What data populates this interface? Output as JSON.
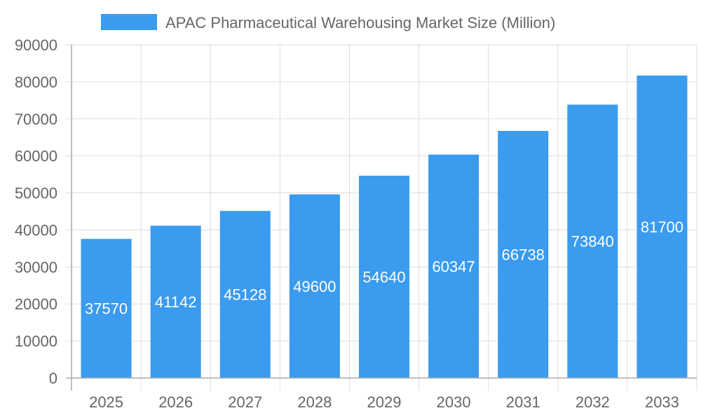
{
  "chart_data": {
    "type": "bar",
    "title": "",
    "xlabel": "",
    "ylabel": "",
    "categories": [
      "2025",
      "2026",
      "2027",
      "2028",
      "2029",
      "2030",
      "2031",
      "2032",
      "2033"
    ],
    "series": [
      {
        "name": "APAC Pharmaceutical Warehousing Market Size (Million)",
        "values": [
          37570,
          41142,
          45128,
          49600,
          54640,
          60347,
          66738,
          73840,
          81700
        ]
      }
    ],
    "ylim": [
      0,
      90000
    ],
    "yticks": [
      0,
      10000,
      20000,
      30000,
      40000,
      50000,
      60000,
      70000,
      80000,
      90000
    ],
    "grid": true,
    "legend": "top",
    "data_labels": true,
    "colors": {
      "bar": "#3a9bef",
      "grid": "#dddddd",
      "text": "#666666",
      "label": "#ffffff"
    }
  }
}
